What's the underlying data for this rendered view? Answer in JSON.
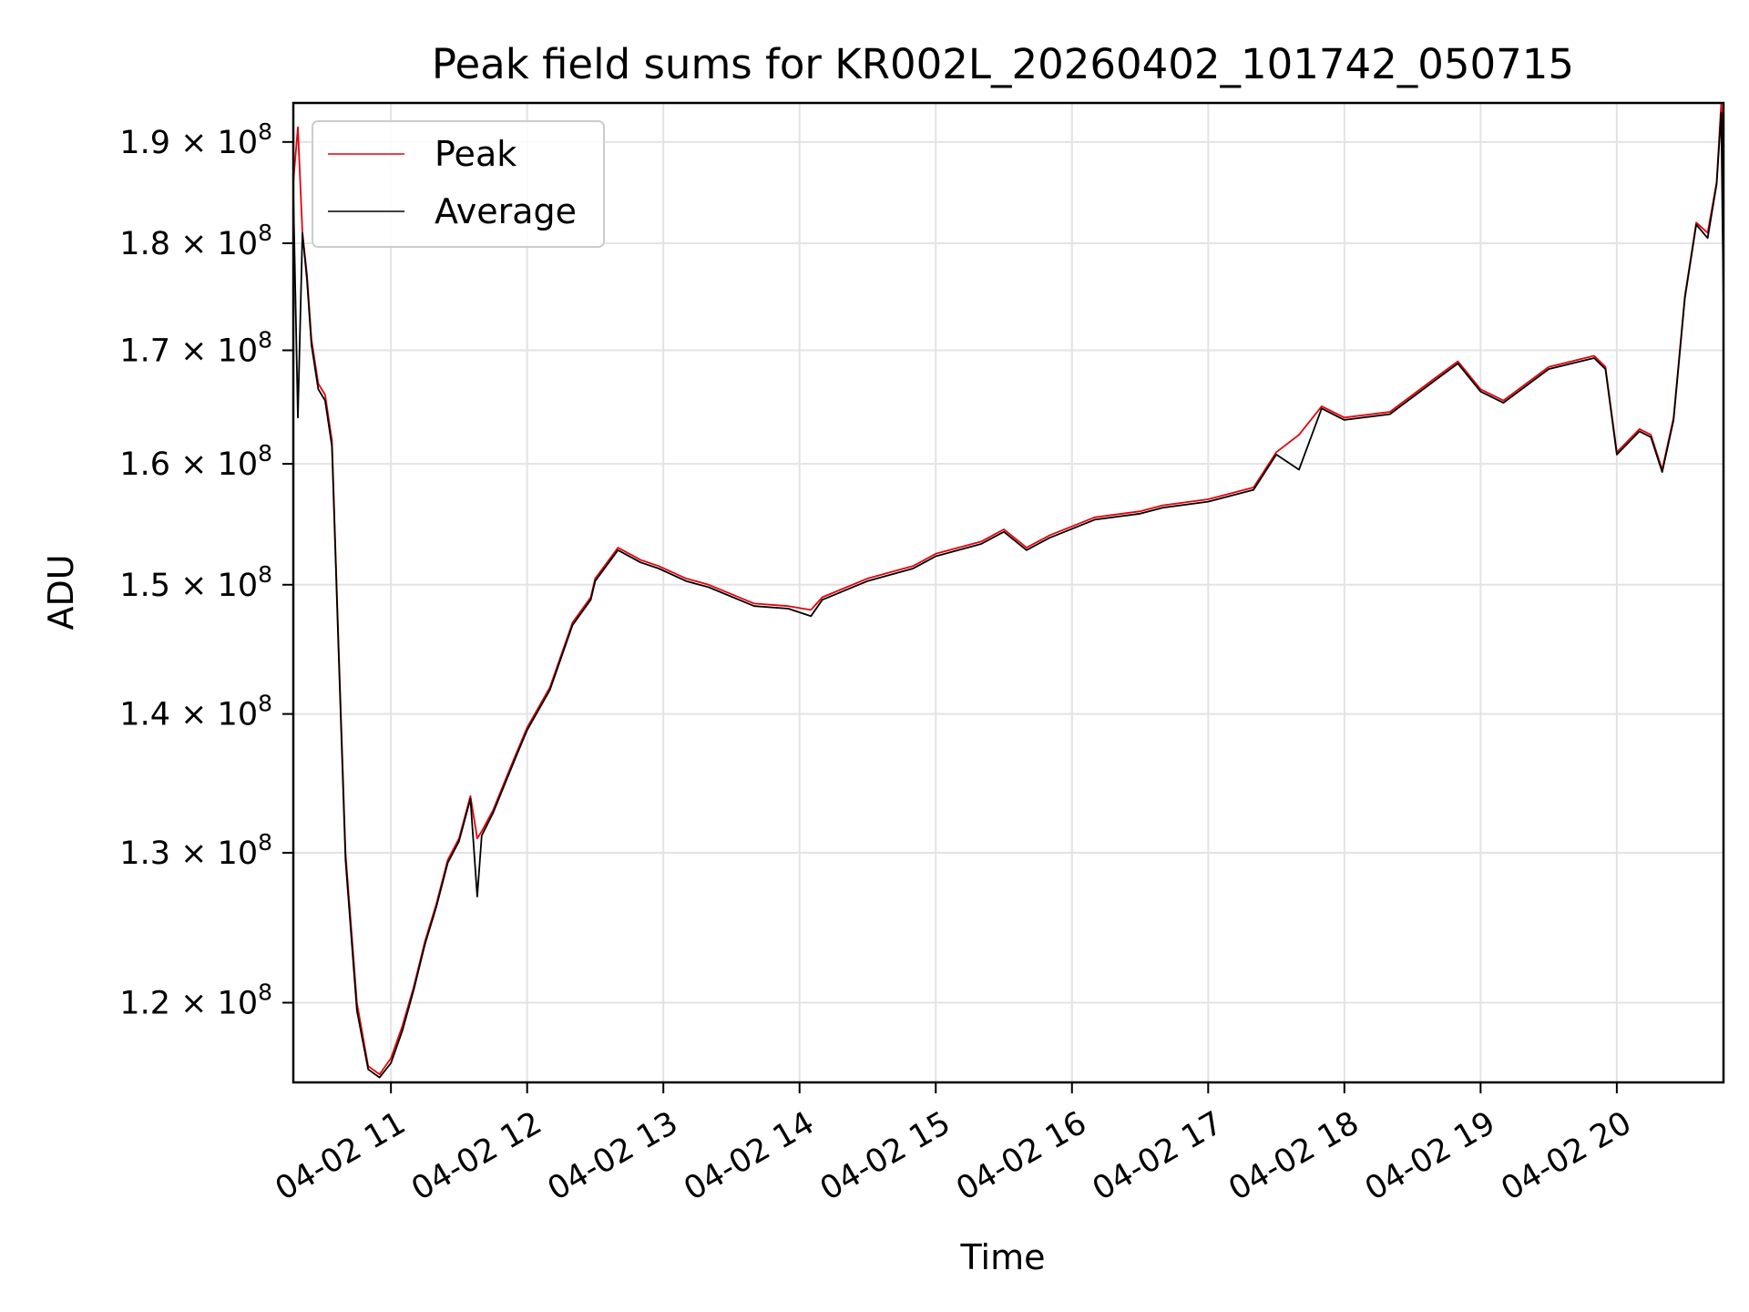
{
  "chart_data": {
    "type": "line",
    "title": "Peak field sums for KR002L_20260402_101742_050715",
    "xlabel": "Time",
    "ylabel": "ADU",
    "yscale": "log",
    "xlim": [
      "04-02 10:17",
      "04-02 20:47"
    ],
    "ylim": [
      115000000,
      194000000
    ],
    "grid": true,
    "legend": {
      "position": "top-left",
      "entries": [
        "Peak",
        "Average"
      ]
    },
    "colors": {
      "Peak": "#e8000b",
      "Average": "#000000",
      "grid": "#e3e3e3"
    },
    "x_ticks": [
      "04-02 11",
      "04-02 12",
      "04-02 13",
      "04-02 14",
      "04-02 15",
      "04-02 16",
      "04-02 17",
      "04-02 18",
      "04-02 19",
      "04-02 20"
    ],
    "y_ticks": [
      {
        "value": 120000000,
        "mantissa": "1.2",
        "base": "10",
        "exp": "8"
      },
      {
        "value": 130000000,
        "mantissa": "1.3",
        "base": "10",
        "exp": "8"
      },
      {
        "value": 140000000,
        "mantissa": "1.4",
        "base": "10",
        "exp": "8"
      },
      {
        "value": 150000000,
        "mantissa": "1.5",
        "base": "10",
        "exp": "8"
      },
      {
        "value": 160000000,
        "mantissa": "1.6",
        "base": "10",
        "exp": "8"
      },
      {
        "value": 170000000,
        "mantissa": "1.7",
        "base": "10",
        "exp": "8"
      },
      {
        "value": 180000000,
        "mantissa": "1.8",
        "base": "10",
        "exp": "8"
      },
      {
        "value": 190000000,
        "mantissa": "1.9",
        "base": "10",
        "exp": "8"
      }
    ],
    "series": [
      {
        "name": "Peak",
        "x": [
          "04-02 10:17",
          "04-02 10:19",
          "04-02 10:21",
          "04-02 10:23",
          "04-02 10:25",
          "04-02 10:28",
          "04-02 10:31",
          "04-02 10:34",
          "04-02 10:37",
          "04-02 10:40",
          "04-02 10:45",
          "04-02 10:50",
          "04-02 10:55",
          "04-02 11:00",
          "04-02 11:05",
          "04-02 11:10",
          "04-02 11:15",
          "04-02 11:20",
          "04-02 11:25",
          "04-02 11:30",
          "04-02 11:35",
          "04-02 11:38",
          "04-02 11:40",
          "04-02 11:45",
          "04-02 11:50",
          "04-02 11:55",
          "04-02 12:00",
          "04-02 12:10",
          "04-02 12:20",
          "04-02 12:28",
          "04-02 12:30",
          "04-02 12:40",
          "04-02 12:50",
          "04-02 12:58",
          "04-02 13:10",
          "04-02 13:20",
          "04-02 13:40",
          "04-02 13:55",
          "04-02 14:05",
          "04-02 14:10",
          "04-02 14:30",
          "04-02 14:50",
          "04-02 15:00",
          "04-02 15:20",
          "04-02 15:30",
          "04-02 15:40",
          "04-02 15:50",
          "04-02 16:10",
          "04-02 16:30",
          "04-02 16:40",
          "04-02 17:00",
          "04-02 17:20",
          "04-02 17:30",
          "04-02 17:40",
          "04-02 17:50",
          "04-02 18:00",
          "04-02 18:20",
          "04-02 18:40",
          "04-02 18:50",
          "04-02 19:00",
          "04-02 19:10",
          "04-02 19:30",
          "04-02 19:40",
          "04-02 19:50",
          "04-02 19:55",
          "04-02 20:00",
          "04-02 20:10",
          "04-02 20:15",
          "04-02 20:20",
          "04-02 20:25",
          "04-02 20:30",
          "04-02 20:35",
          "04-02 20:40",
          "04-02 20:44",
          "04-02 20:46",
          "04-02 20:47"
        ],
        "values": [
          186000000,
          191500000,
          181000000,
          177000000,
          171000000,
          167000000,
          166000000,
          162000000,
          145000000,
          130000000,
          120000000,
          116000000,
          115500000,
          116500000,
          118500000,
          121000000,
          124000000,
          126500000,
          129500000,
          131000000,
          134000000,
          131000000,
          131500000,
          133000000,
          135000000,
          137000000,
          139000000,
          142000000,
          147000000,
          149000000,
          150500000,
          153000000,
          152000000,
          151500000,
          150500000,
          150000000,
          148500000,
          148300000,
          148000000,
          149000000,
          150500000,
          151500000,
          152500000,
          153500000,
          154500000,
          153000000,
          154000000,
          155500000,
          156000000,
          156500000,
          157000000,
          158000000,
          161000000,
          162500000,
          165000000,
          164000000,
          164500000,
          167500000,
          169000000,
          166500000,
          165500000,
          168500000,
          169000000,
          169500000,
          168500000,
          161000000,
          163000000,
          162500000,
          159500000,
          164000000,
          175000000,
          182000000,
          181000000,
          186000000,
          194000000,
          188000000
        ]
      },
      {
        "name": "Average",
        "x": [
          "04-02 10:17",
          "04-02 10:19",
          "04-02 10:21",
          "04-02 10:23",
          "04-02 10:25",
          "04-02 10:28",
          "04-02 10:31",
          "04-02 10:34",
          "04-02 10:37",
          "04-02 10:40",
          "04-02 10:45",
          "04-02 10:50",
          "04-02 10:55",
          "04-02 11:00",
          "04-02 11:05",
          "04-02 11:10",
          "04-02 11:15",
          "04-02 11:20",
          "04-02 11:25",
          "04-02 11:30",
          "04-02 11:35",
          "04-02 11:38",
          "04-02 11:40",
          "04-02 11:45",
          "04-02 11:50",
          "04-02 11:55",
          "04-02 12:00",
          "04-02 12:10",
          "04-02 12:20",
          "04-02 12:28",
          "04-02 12:30",
          "04-02 12:40",
          "04-02 12:50",
          "04-02 12:58",
          "04-02 13:10",
          "04-02 13:20",
          "04-02 13:40",
          "04-02 13:55",
          "04-02 14:05",
          "04-02 14:10",
          "04-02 14:30",
          "04-02 14:50",
          "04-02 15:00",
          "04-02 15:20",
          "04-02 15:30",
          "04-02 15:40",
          "04-02 15:50",
          "04-02 16:10",
          "04-02 16:30",
          "04-02 16:40",
          "04-02 17:00",
          "04-02 17:20",
          "04-02 17:30",
          "04-02 17:40",
          "04-02 17:50",
          "04-02 18:00",
          "04-02 18:20",
          "04-02 18:40",
          "04-02 18:50",
          "04-02 19:00",
          "04-02 19:10",
          "04-02 19:30",
          "04-02 19:40",
          "04-02 19:50",
          "04-02 19:55",
          "04-02 20:00",
          "04-02 20:10",
          "04-02 20:15",
          "04-02 20:20",
          "04-02 20:25",
          "04-02 20:30",
          "04-02 20:35",
          "04-02 20:40",
          "04-02 20:44",
          "04-02 20:46",
          "04-02 20:47"
        ],
        "values": [
          185000000,
          164000000,
          181000000,
          176500000,
          170500000,
          166500000,
          165500000,
          161500000,
          144500000,
          129500000,
          119500000,
          115800000,
          115300000,
          116200000,
          118200000,
          120800000,
          123800000,
          126300000,
          129300000,
          130800000,
          133800000,
          127000000,
          131200000,
          132800000,
          134800000,
          136800000,
          138800000,
          141800000,
          146800000,
          148800000,
          150300000,
          152800000,
          151800000,
          151300000,
          150300000,
          149800000,
          148300000,
          148100000,
          147500000,
          148800000,
          150300000,
          151300000,
          152300000,
          153300000,
          154300000,
          152800000,
          153800000,
          155300000,
          155800000,
          156300000,
          156800000,
          157800000,
          160800000,
          159500000,
          164800000,
          163800000,
          164300000,
          167300000,
          168800000,
          166300000,
          165300000,
          168300000,
          168800000,
          169300000,
          168300000,
          160800000,
          162800000,
          162300000,
          159300000,
          163800000,
          174800000,
          181800000,
          180500000,
          185800000,
          193000000,
          174000000
        ]
      }
    ]
  }
}
